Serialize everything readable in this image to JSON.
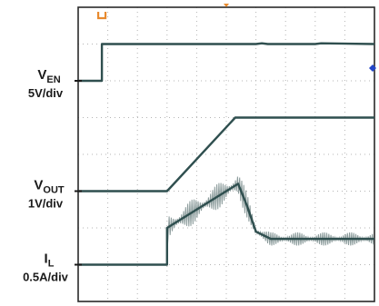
{
  "chart_data": {
    "type": "line",
    "title": "",
    "xlabel": "",
    "ylabel": "",
    "grid": true,
    "x_divisions": 10,
    "y_divisions": 8,
    "xlim": [
      0,
      10
    ],
    "ylim": [
      0,
      8
    ],
    "channels": [
      {
        "name": "V_EN",
        "label_main": "V",
        "label_sub": "EN",
        "scale": "5V/div",
        "marker_level": 6.0,
        "color": "#2f4f4f",
        "x": [
          0,
          0.8,
          0.8,
          6.0,
          6.2,
          6.4,
          8.0,
          8.2,
          10
        ],
        "y": [
          6.0,
          6.0,
          7.0,
          7.0,
          7.02,
          7.0,
          7.0,
          7.02,
          7.0
        ]
      },
      {
        "name": "V_OUT",
        "label_main": "V",
        "label_sub": "OUT",
        "scale": "1V/div",
        "marker_level": 3.0,
        "color": "#2f4f4f",
        "x": [
          0,
          3.0,
          5.3,
          6.5,
          10
        ],
        "y": [
          3.0,
          3.0,
          5.0,
          5.0,
          5.0
        ]
      },
      {
        "name": "I_L",
        "label_main": "I",
        "label_sub": "L",
        "scale": "0.5A/div",
        "marker_level": 1.0,
        "color": "#2f4f4f",
        "noise_color": "#8c9c9c",
        "x": [
          0,
          3.0,
          3.0,
          5.0,
          5.4,
          5.7,
          6.0,
          6.5,
          7.0,
          10
        ],
        "y": [
          1.0,
          1.0,
          2.0,
          3.0,
          3.2,
          2.6,
          1.9,
          1.7,
          1.7,
          1.7
        ]
      }
    ],
    "markers": {
      "trigger_color": "#e88a2e",
      "arrow_color": "#2246c8"
    }
  }
}
